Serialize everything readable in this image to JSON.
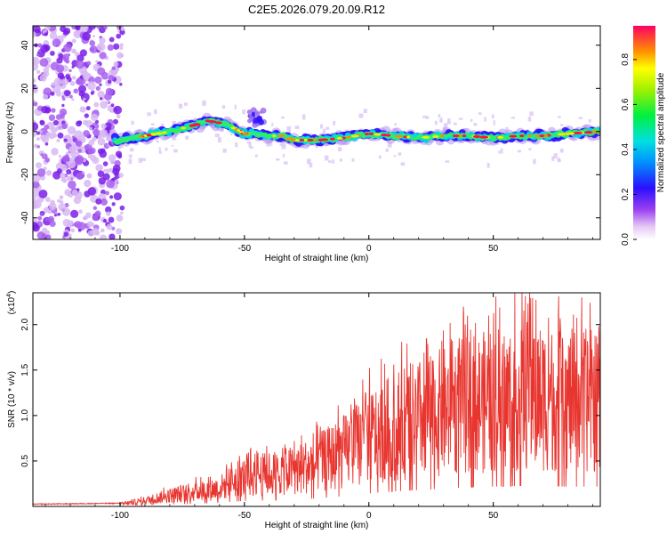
{
  "title": "C2E5.2026.079.20.09.R12",
  "chart_data": [
    {
      "type": "heatmap",
      "name": "spectrogram",
      "xlabel": "Height of straight line (km)",
      "ylabel": "Frequency (Hz)",
      "xlim": [
        -135,
        93
      ],
      "ylim": [
        -50,
        49
      ],
      "xticks": [
        -100,
        -50,
        0,
        50
      ],
      "xtick_labels": [
        "-100",
        "-50",
        "0",
        "50"
      ],
      "yticks": [
        -40,
        -20,
        0,
        20,
        40
      ],
      "ytick_labels": [
        "-40",
        "-20",
        "0",
        "20",
        "40"
      ],
      "colorbar": {
        "label": "Normalized spectral amplitude",
        "range": [
          0,
          0.95
        ],
        "ticks": [
          0,
          0.2,
          0.4,
          0.6,
          0.8
        ],
        "tick_labels": [
          "0.0",
          "0.2",
          "0.4",
          "0.6",
          "0.8"
        ]
      },
      "ridge": {
        "x": [
          -100,
          -90,
          -80,
          -70,
          -65,
          -60,
          -55,
          -50,
          -45,
          -40,
          -35,
          -30,
          -20,
          -10,
          0,
          10,
          20,
          30,
          40,
          50,
          60,
          70,
          80,
          93
        ],
        "y": [
          -4,
          -2,
          0,
          3,
          5,
          4,
          2,
          -1,
          -1,
          -2,
          -2,
          -4,
          -4,
          -3,
          -1,
          -2,
          -3,
          -2,
          -2,
          -3,
          -2,
          -2,
          -1,
          0
        ]
      }
    },
    {
      "type": "line",
      "name": "snr",
      "xlabel": "Height of straight line (km)",
      "ylabel": "SNR (10 * v/v)",
      "y_scale_label": "(x10^4)",
      "y_scale_base": "(x10",
      "y_scale_exp": "4",
      "y_scale_close": ")",
      "color": "#e8352f",
      "xlim": [
        -135,
        93
      ],
      "ylim": [
        0,
        2.35
      ],
      "xticks": [
        -100,
        -50,
        0,
        50
      ],
      "xtick_labels": [
        "-100",
        "-50",
        "0",
        "50"
      ],
      "yticks": [
        0.5,
        1.0,
        1.5,
        2.0
      ],
      "ytick_labels": [
        "0.5",
        "1.0",
        "1.5",
        "2.0"
      ],
      "envelope": {
        "x": [
          -135,
          -100,
          -90,
          -80,
          -70,
          -60,
          -55,
          -50,
          -40,
          -30,
          -20,
          -10,
          0,
          10,
          20,
          30,
          40,
          50,
          60,
          70,
          80,
          93
        ],
        "y": [
          0.02,
          0.03,
          0.08,
          0.15,
          0.2,
          0.25,
          0.35,
          0.4,
          0.45,
          0.5,
          0.6,
          0.75,
          0.95,
          1.1,
          1.2,
          1.3,
          1.4,
          1.45,
          1.5,
          1.5,
          1.45,
          1.45
        ]
      }
    }
  ]
}
